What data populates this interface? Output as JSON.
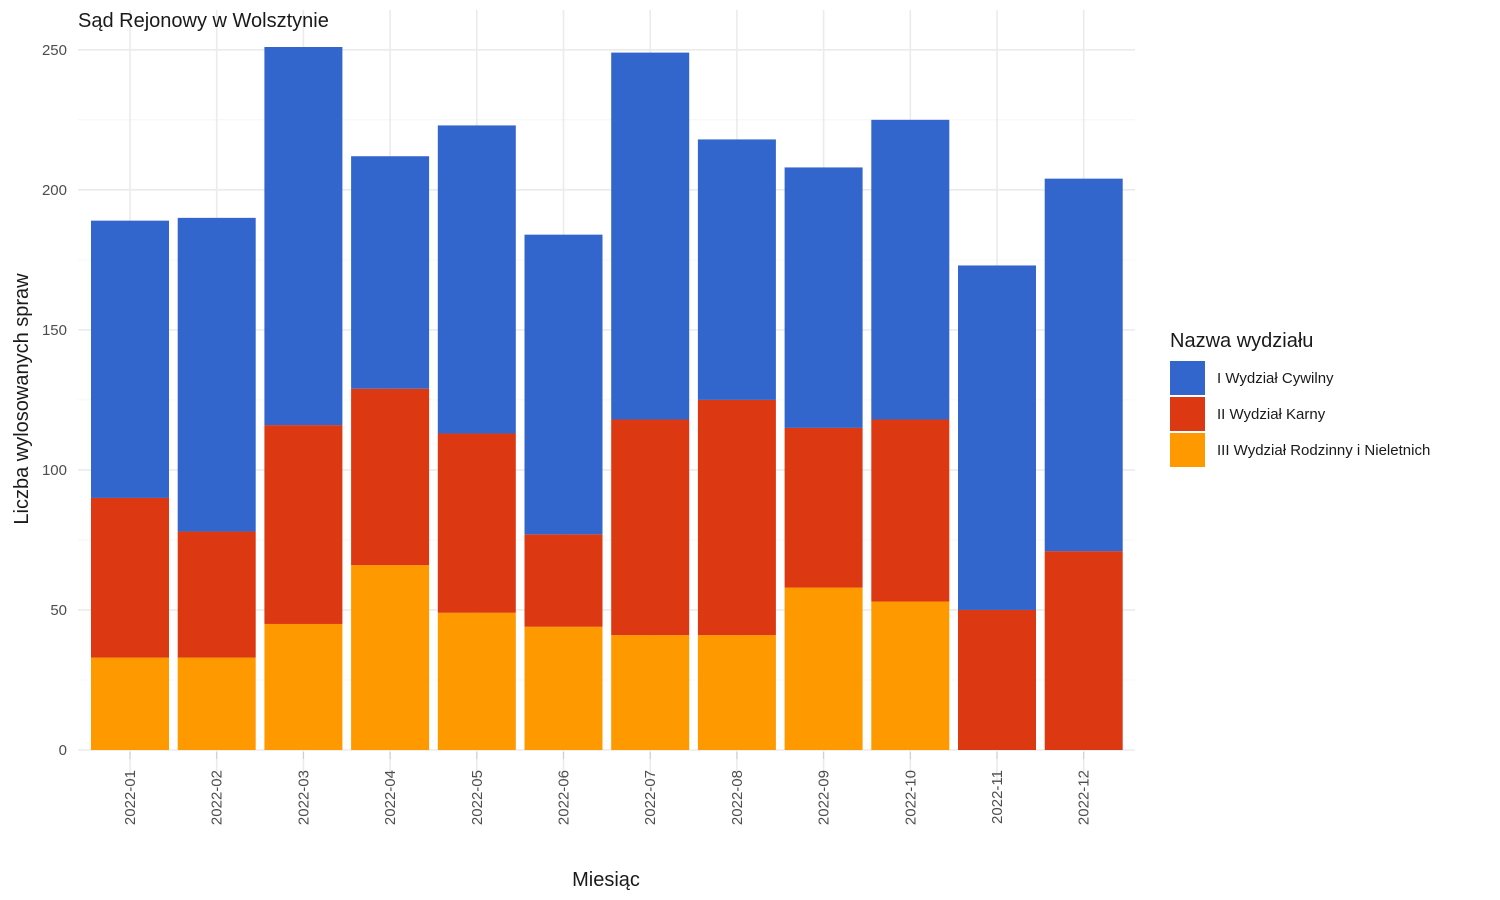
{
  "chart_data": {
    "type": "bar",
    "stacked": true,
    "title": "Sąd Rejonowy w Wolsztynie",
    "xlabel": "Miesiąc",
    "ylabel": "Liczba wylosowanych spraw",
    "ylim": [
      0,
      251
    ],
    "yticks": [
      0,
      50,
      100,
      150,
      200,
      250
    ],
    "grid": true,
    "legend_position": "right",
    "legend_title": "Nazwa wydziału",
    "categories": [
      "2022-01",
      "2022-02",
      "2022-03",
      "2022-04",
      "2022-05",
      "2022-06",
      "2022-07",
      "2022-08",
      "2022-09",
      "2022-10",
      "2022-11",
      "2022-12"
    ],
    "series": [
      {
        "name": "I Wydział Cywilny",
        "color": "#3366cc",
        "values": [
          99,
          112,
          135,
          83,
          110,
          107,
          131,
          93,
          93,
          107,
          123,
          133
        ]
      },
      {
        "name": "II Wydział Karny",
        "color": "#dc3912",
        "values": [
          57,
          45,
          71,
          63,
          64,
          33,
          77,
          84,
          57,
          65,
          50,
          71
        ]
      },
      {
        "name": "III Wydział Rodzinny i Nieletnich",
        "color": "#ff9900",
        "values": [
          33,
          33,
          45,
          66,
          49,
          44,
          41,
          41,
          58,
          53,
          0,
          0
        ]
      }
    ]
  }
}
